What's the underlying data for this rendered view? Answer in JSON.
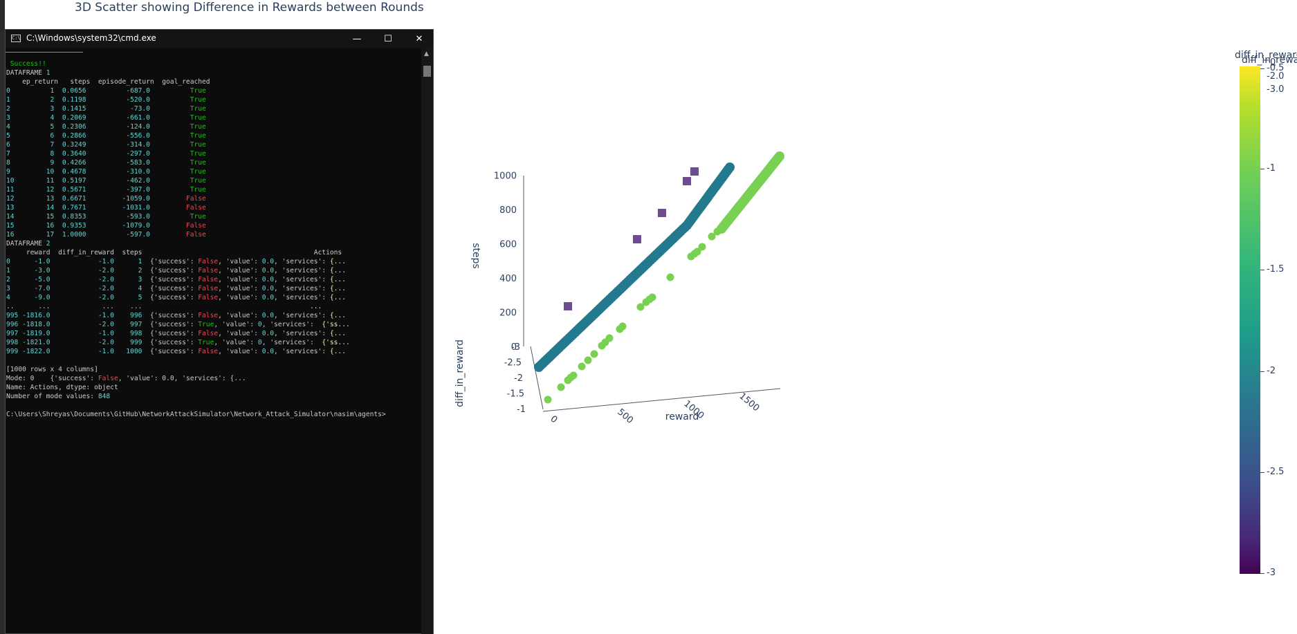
{
  "chart_title": "3D Scatter showing Difference in Rewards between Rounds",
  "cmd": {
    "window_title": "C:\\Windows\\system32\\cmd.exe",
    "app_icon_text": "C:\\",
    "buttons": {
      "minimize": "—",
      "maximize": "☐",
      "close": "✕"
    },
    "success": "Success!!",
    "df1_label": "DATAFRAME 1",
    "df1_header": "    ep_return   steps  episode_return  goal_reached",
    "df1_rows": [
      {
        "idx": "0 ",
        "vals": "         1  0.0656          -687.0          ",
        "goal": "True"
      },
      {
        "idx": "1 ",
        "vals": "         2  0.1198          -520.0          ",
        "goal": "True"
      },
      {
        "idx": "2 ",
        "vals": "         3  0.1415           -73.0          ",
        "goal": "True"
      },
      {
        "idx": "3 ",
        "vals": "         4  0.2069          -661.0          ",
        "goal": "True"
      },
      {
        "idx": "4 ",
        "vals": "         5  0.2306          -124.0          ",
        "goal": "True"
      },
      {
        "idx": "5 ",
        "vals": "         6  0.2866          -556.0          ",
        "goal": "True"
      },
      {
        "idx": "6 ",
        "vals": "         7  0.3249          -314.0          ",
        "goal": "True"
      },
      {
        "idx": "7 ",
        "vals": "         8  0.3640          -297.0          ",
        "goal": "True"
      },
      {
        "idx": "8 ",
        "vals": "         9  0.4266          -583.0          ",
        "goal": "True"
      },
      {
        "idx": "9 ",
        "vals": "        10  0.4678          -310.0          ",
        "goal": "True"
      },
      {
        "idx": "10",
        "vals": "        11  0.5197          -462.0          ",
        "goal": "True"
      },
      {
        "idx": "11",
        "vals": "        12  0.5671          -397.0          ",
        "goal": "True"
      },
      {
        "idx": "12",
        "vals": "        13  0.6671         -1059.0         ",
        "goal": "False"
      },
      {
        "idx": "13",
        "vals": "        14  0.7671         -1031.0         ",
        "goal": "False"
      },
      {
        "idx": "14",
        "vals": "        15  0.8353          -593.0          ",
        "goal": "True"
      },
      {
        "idx": "15",
        "vals": "        16  0.9353         -1079.0         ",
        "goal": "False"
      },
      {
        "idx": "16",
        "vals": "        17  1.0000          -597.0         ",
        "goal": "False"
      }
    ],
    "df2_label": "DATAFRAME 2",
    "df2_header": "     reward  diff_in_reward  steps                                           Actions",
    "df2_rows": [
      {
        "pre": "0      -1.0            -1.0      1  ",
        "succ": "False",
        "mid": "0.0",
        "tail": "{..."
      },
      {
        "pre": "1      -3.0            -2.0      2  ",
        "succ": "False",
        "mid": "0.0",
        "tail": "{..."
      },
      {
        "pre": "2      -5.0            -2.0      3  ",
        "succ": "False",
        "mid": "0.0",
        "tail": "{..."
      },
      {
        "pre": "3      -7.0            -2.0      4  ",
        "succ": "False",
        "mid": "0.0",
        "tail": "{..."
      },
      {
        "pre": "4      -9.0            -2.0      5  ",
        "succ": "False",
        "mid": "0.0",
        "tail": "{..."
      },
      {
        "pre": "..      ...             ...    ...  ",
        "succ": "",
        "mid": "",
        "tail": "..."
      },
      {
        "pre": "995 -1816.0            -1.0    996  ",
        "succ": "False",
        "mid": "0.0",
        "tail": "{..."
      },
      {
        "pre": "996 -1818.0            -2.0    997  ",
        "succ": "True",
        "mid": "0",
        "tail": "{'ss..."
      },
      {
        "pre": "997 -1819.0            -1.0    998  ",
        "succ": "False",
        "mid": "0.0",
        "tail": "{..."
      },
      {
        "pre": "998 -1821.0            -2.0    999  ",
        "succ": "True",
        "mid": "0",
        "tail": "{'ss..."
      },
      {
        "pre": "999 -1822.0            -1.0   1000  ",
        "succ": "False",
        "mid": "0.0",
        "tail": "{..."
      }
    ],
    "shape_line": "[1000 rows x 4 columns]",
    "mode_line_pre": "Mode: 0    {'success': ",
    "mode_line_false": "False",
    "mode_line_post": ", 'value': 0.0, 'services': {...",
    "name_line": "Name: Actions, dtype: object",
    "count_line_pre": "Number of mode values: ",
    "count_value": "848",
    "prompt": "C:\\Users\\Shreyas\\Documents\\GitHub\\NetworkAttackSimulator\\Network_Attack_Simulator\\nasim\\agents>"
  },
  "chart_data": {
    "type": "scatter",
    "title": "3D Scatter showing Difference in Rewards between Rounds",
    "x_label": "reward",
    "y_label": "diff_in_reward",
    "z_label": "steps",
    "x_ticks": [
      "0",
      "500",
      "1000",
      "1500"
    ],
    "y_ticks": [
      "-3",
      "-2.5",
      "-2",
      "-1.5",
      "-1"
    ],
    "z_ticks": [
      "0",
      "200",
      "400",
      "600",
      "800",
      "1000"
    ],
    "colorscale": "viridis",
    "colorbar_title": "diff_in_reward",
    "colorbar_ticks": [
      "-0.5",
      "-1",
      "-1.5",
      "-2",
      "-2.5",
      "-3"
    ],
    "colorbar_overlap_labels": [
      "0",
      "-2.0",
      "-3.0"
    ],
    "groups": [
      {
        "diff": -3,
        "color": "#6d4c8f",
        "marker": "square",
        "count": 6
      },
      {
        "diff": -2,
        "color": "#23798e",
        "marker": "circle",
        "count": "dense band"
      },
      {
        "diff": -1,
        "color": "#79d151",
        "marker": "circle",
        "count": "dense band"
      }
    ]
  }
}
